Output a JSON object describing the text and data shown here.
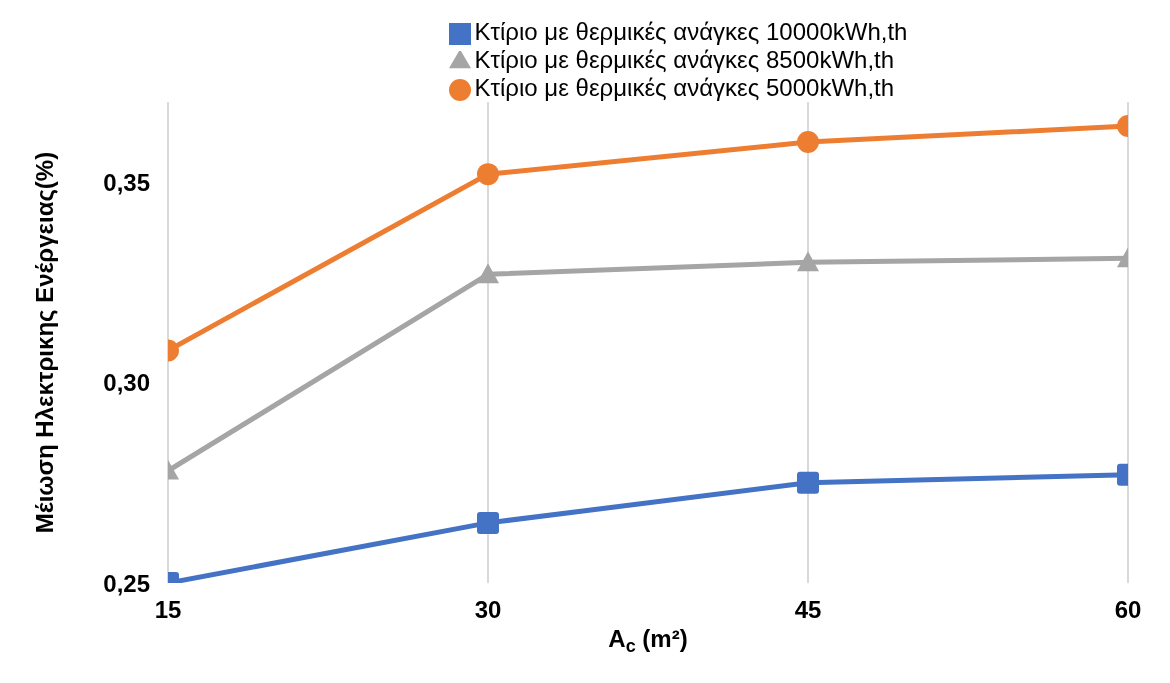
{
  "chart_data": {
    "type": "line",
    "xlabel": "A$_{c}$ (m²)",
    "ylabel": "Μέιωση Ηλεκτρικης Ενέργειας(%)",
    "x": [
      15,
      30,
      45,
      60
    ],
    "series": [
      {
        "name": "Κτίριο με θερμικές ανάγκες 10000kWh,th",
        "color": "#4472c4",
        "marker": "square",
        "values": [
          0.25,
          0.265,
          0.275,
          0.277
        ]
      },
      {
        "name": "Κτίριο με θερμικές ανάγκες 8500kWh,th",
        "color": "#a5a5a5",
        "marker": "triangle",
        "values": [
          0.278,
          0.327,
          0.33,
          0.331
        ]
      },
      {
        "name": "Κτίριο με θερμικές ανάγκες 5000kWh,th",
        "color": "#ed7d31",
        "marker": "circle",
        "values": [
          0.308,
          0.352,
          0.36,
          0.364
        ]
      }
    ],
    "xlim": [
      15,
      60
    ],
    "xticks": [
      15,
      30,
      45,
      60
    ],
    "ylim": [
      0.25,
      0.37
    ],
    "yticks": [
      {
        "value": 0.25,
        "label": "0,25"
      },
      {
        "value": 0.3,
        "label": "0,30"
      },
      {
        "value": 0.35,
        "label": "0,35"
      }
    ],
    "grid": "x",
    "legend": "top",
    "line_style": "solid"
  }
}
